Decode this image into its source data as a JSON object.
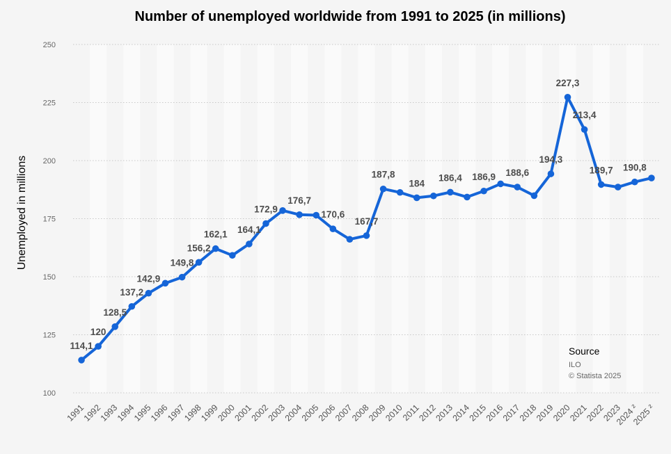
{
  "chart_data": {
    "type": "line",
    "title": "Number of unemployed worldwide from 1991 to 2025 (in millions)",
    "xlabel": "",
    "ylabel": "Unemployed in millions",
    "ylim": [
      100,
      250
    ],
    "yticks": [
      100,
      125,
      150,
      175,
      200,
      225,
      250
    ],
    "grid": true,
    "color": "#1565d8",
    "categories": [
      "1991",
      "1992",
      "1993",
      "1994",
      "1995",
      "1996",
      "1997",
      "1998",
      "1999",
      "2000",
      "2001",
      "2002",
      "2003",
      "2004",
      "2005",
      "2006",
      "2007",
      "2008",
      "2009",
      "2010",
      "2011",
      "2012",
      "2013",
      "2014",
      "2015",
      "2016",
      "2017",
      "2018",
      "2019",
      "2020",
      "2021",
      "2022",
      "2023",
      "2024 ²",
      "2025 ²"
    ],
    "values": [
      114.1,
      120,
      128.5,
      137.2,
      142.9,
      147.2,
      149.8,
      156.2,
      162.1,
      159.2,
      164.1,
      172.9,
      178.5,
      176.7,
      176.5,
      170.6,
      166.1,
      167.7,
      187.8,
      186.3,
      184,
      184.8,
      186.4,
      184.3,
      186.9,
      190,
      188.6,
      184.9,
      194.3,
      227.3,
      213.4,
      189.7,
      188.6,
      190.8,
      192.5
    ],
    "data_labels": [
      "114,1",
      "120",
      "128,5",
      "137,2",
      "142,9",
      null,
      "149,8",
      "156,2",
      "162,1",
      null,
      "164,1",
      "172,9",
      null,
      "176,7",
      null,
      "170,6",
      null,
      "167,7",
      "187,8",
      null,
      "184",
      null,
      "186,4",
      null,
      "186,9",
      null,
      "188,6",
      null,
      "194,3",
      "227,3",
      "213,4",
      "189,7",
      null,
      "190,8",
      null
    ]
  },
  "source": {
    "heading": "Source",
    "lines": [
      "ILO",
      "© Statista 2025"
    ]
  }
}
